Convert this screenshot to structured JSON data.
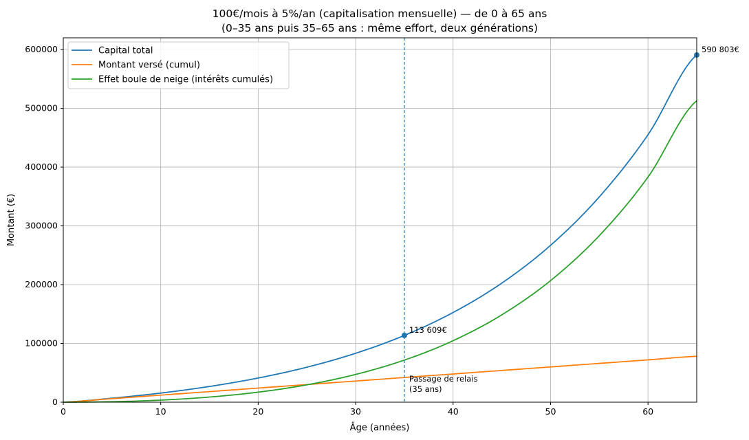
{
  "chart_data": {
    "type": "line",
    "title": "100€/mois à 5%/an (capitalisation mensuelle) — de 0 à 65 ans",
    "subtitle": "(0–35 ans puis 35–65 ans : même effort, deux générations)",
    "xlabel": "Âge (années)",
    "ylabel": "Montant (€)",
    "xlim": [
      0,
      65
    ],
    "ylim": [
      0,
      620000
    ],
    "xticks": [
      0,
      10,
      20,
      30,
      40,
      50,
      60
    ],
    "yticks": [
      0,
      100000,
      200000,
      300000,
      400000,
      500000,
      600000
    ],
    "grid": true,
    "legend_position": "top-left",
    "monthly_contribution": 100,
    "annual_rate": 0.05,
    "series": [
      {
        "name": "Capital total",
        "color": "#1f77b4",
        "x": [
          0,
          5,
          10,
          15,
          20,
          25,
          30,
          35,
          40,
          45,
          50,
          55,
          60,
          65
        ],
        "values": [
          0,
          6801,
          15528,
          26729,
          41103,
          59550,
          83226,
          113609,
          152602,
          202644,
          266865,
          349289,
          455069,
          590803
        ]
      },
      {
        "name": "Montant versé (cumul)",
        "color": "#ff7f0e",
        "x": [
          0,
          5,
          10,
          15,
          20,
          25,
          30,
          35,
          40,
          45,
          50,
          55,
          60,
          65
        ],
        "values": [
          0,
          6000,
          12000,
          18000,
          24000,
          30000,
          36000,
          42000,
          48000,
          54000,
          60000,
          66000,
          72000,
          78000
        ]
      },
      {
        "name": "Effet boule de neige (intérêts cumulés)",
        "color": "#2ca02c",
        "x": [
          0,
          5,
          10,
          15,
          20,
          25,
          30,
          35,
          40,
          45,
          50,
          55,
          60,
          65
        ],
        "values": [
          0,
          801,
          3528,
          8729,
          17103,
          29550,
          47226,
          71609,
          104602,
          148644,
          206865,
          283289,
          383069,
          512803
        ]
      }
    ],
    "vline": {
      "x": 35,
      "label": "Passage de relais",
      "sublabel": "(35 ans)"
    },
    "point_annotations": [
      {
        "x": 35,
        "y": 113609,
        "label": "113 609€"
      },
      {
        "x": 65,
        "y": 590803,
        "label": "590 803€"
      }
    ]
  }
}
